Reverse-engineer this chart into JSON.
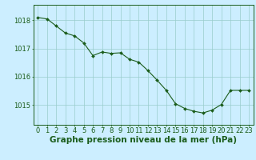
{
  "x": [
    0,
    1,
    2,
    3,
    4,
    5,
    6,
    7,
    8,
    9,
    10,
    11,
    12,
    13,
    14,
    15,
    16,
    17,
    18,
    19,
    20,
    21,
    22,
    23
  ],
  "y": [
    1018.1,
    1018.05,
    1017.8,
    1017.55,
    1017.45,
    1017.2,
    1016.75,
    1016.88,
    1016.83,
    1016.85,
    1016.62,
    1016.52,
    1016.22,
    1015.88,
    1015.52,
    1015.05,
    1014.88,
    1014.78,
    1014.72,
    1014.82,
    1015.02,
    1015.52,
    1015.52,
    1015.52
  ],
  "bg_color": "#cceeff",
  "line_color": "#1a5c1a",
  "marker_color": "#1a5c1a",
  "grid_color": "#99cccc",
  "axis_color": "#1a5c1a",
  "tick_label_color": "#1a5c1a",
  "xlabel": "Graphe pression niveau de la mer (hPa)",
  "xlabel_color": "#1a5c1a",
  "yticks": [
    1015,
    1016,
    1017,
    1018
  ],
  "ylim": [
    1014.3,
    1018.55
  ],
  "xlim": [
    -0.5,
    23.5
  ],
  "tick_fontsize": 6.0,
  "xlabel_fontsize": 7.5
}
